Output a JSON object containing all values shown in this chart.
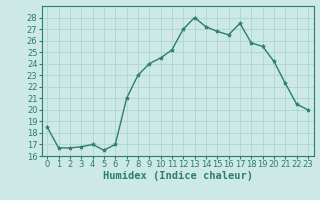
{
  "x": [
    0,
    1,
    2,
    3,
    4,
    5,
    6,
    7,
    8,
    9,
    10,
    11,
    12,
    13,
    14,
    15,
    16,
    17,
    18,
    19,
    20,
    21,
    22,
    23
  ],
  "y": [
    18.5,
    16.7,
    16.7,
    16.8,
    17.0,
    16.5,
    17.0,
    21.0,
    23.0,
    24.0,
    24.5,
    25.2,
    27.0,
    28.0,
    27.2,
    26.8,
    26.5,
    27.5,
    25.8,
    25.5,
    24.2,
    22.3,
    20.5,
    20.0
  ],
  "line_color": "#2e7d6e",
  "marker": "*",
  "marker_size": 3,
  "bg_color": "#cce9e7",
  "grid_color": "#b0d8d5",
  "xlabel": "Humidex (Indice chaleur)",
  "xlim": [
    -0.5,
    23.5
  ],
  "ylim": [
    16,
    29
  ],
  "yticks": [
    16,
    17,
    18,
    19,
    20,
    21,
    22,
    23,
    24,
    25,
    26,
    27,
    28
  ],
  "xticks": [
    0,
    1,
    2,
    3,
    4,
    5,
    6,
    7,
    8,
    9,
    10,
    11,
    12,
    13,
    14,
    15,
    16,
    17,
    18,
    19,
    20,
    21,
    22,
    23
  ],
  "xtick_labels": [
    "0",
    "1",
    "2",
    "3",
    "4",
    "5",
    "6",
    "7",
    "8",
    "9",
    "10",
    "11",
    "12",
    "13",
    "14",
    "15",
    "16",
    "17",
    "18",
    "19",
    "20",
    "21",
    "22",
    "23"
  ],
  "tick_fontsize": 6,
  "xlabel_fontsize": 7.5
}
